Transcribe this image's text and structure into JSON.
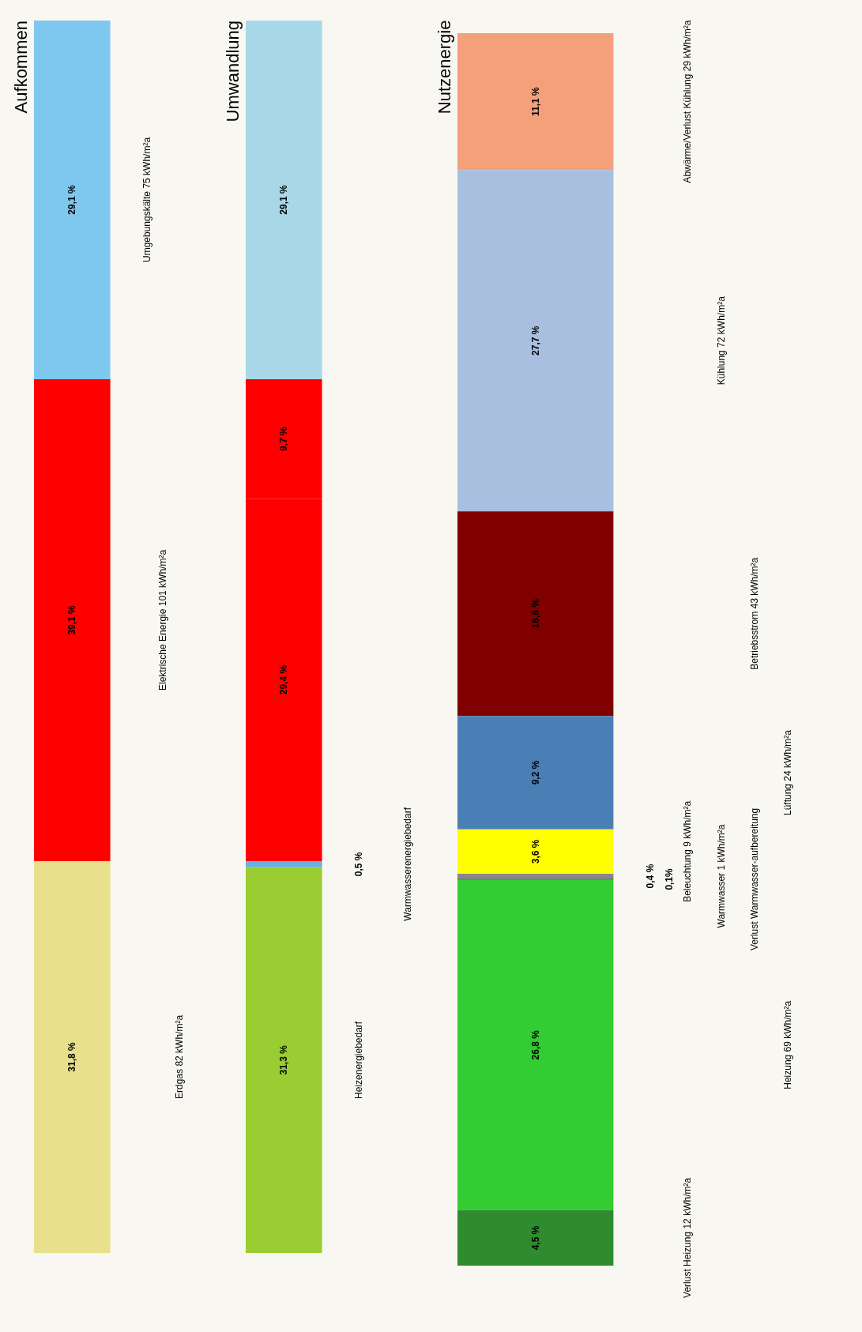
{
  "chart_data": [
    {
      "type": "other",
      "title": "Aufkommen",
      "categories": [
        "Umgebungskälte 75 kWh/m²a",
        "Elektrische Energie 101 kWh/m²a",
        "Erdgas 82 kWh/m²a"
      ],
      "values": [
        29.1,
        39.1,
        31.8
      ],
      "colors": [
        "#7ec8f0",
        "#ff0000",
        "#e8e08c"
      ],
      "value_labels": [
        "29,1 %",
        "39,1 %",
        "31,8 %"
      ]
    },
    {
      "type": "other",
      "title": "Umwandlung",
      "categories": [
        null,
        null,
        null,
        "Warmwasserenergiebedarf",
        "Heizenergiebedarf"
      ],
      "values": [
        29.1,
        9.7,
        29.4,
        0.5,
        31.3
      ],
      "colors": [
        "#a8d8e8",
        "#ff0000",
        "#ff0000",
        "#6ab0e0",
        "#9acd32"
      ],
      "value_labels": [
        "29,1 %",
        "9,7 %",
        "29,4 %",
        "0,5 %",
        "31,3 %"
      ]
    },
    {
      "type": "other",
      "title": "Nutzenergie",
      "categories": [
        "Abwärme/Verlust Kühlung 29 kWh/m²a",
        "Kühlung 72 kWh/m²a",
        "Betriebsstrom 43 kWh/m²a",
        "Lüftung 24 kWh/m²a",
        "Beleuchtung 9 kWh/m²a",
        "Warmwasser 1 kWh/m²a",
        "Verlust Warmwasser-aufbereitung",
        "Heizung 69 kWh/m²a",
        "Verlust Heizung 12 kWh/m²a"
      ],
      "values": [
        11.1,
        27.7,
        16.6,
        9.2,
        3.6,
        0.4,
        0.1,
        26.8,
        4.5
      ],
      "colors": [
        "#f4a07a",
        "#a8bfdf",
        "#800000",
        "#4a7fb5",
        "#ffff00",
        "#888888",
        "#555555",
        "#33cc33",
        "#2e8b2e"
      ],
      "value_labels": [
        "11,1 %",
        "27,7 %",
        "16,6 %",
        "9,2 %",
        "3,6 %",
        "0,4 %",
        "0,1%",
        "26,8 %",
        "4,5 %"
      ]
    }
  ]
}
